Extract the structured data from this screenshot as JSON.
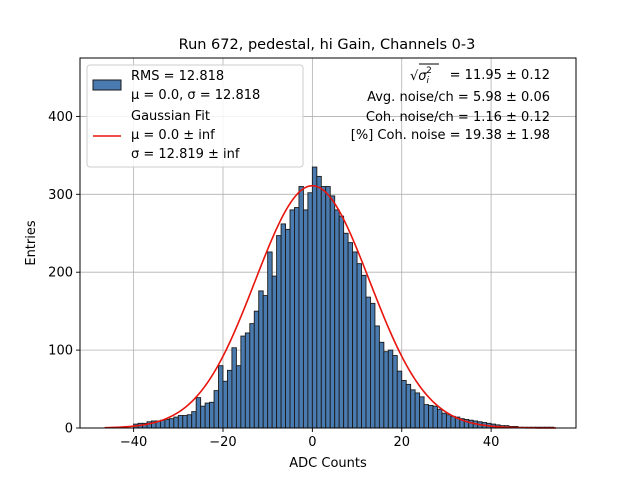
{
  "chart_data": {
    "type": "bar",
    "title": "Run 672, pedestal, hi Gain, Channels 0-3",
    "xlabel": "ADC Counts",
    "ylabel": "Entries",
    "xlim": [
      -52,
      59
    ],
    "ylim": [
      0,
      475
    ],
    "xticks": [
      -40,
      -20,
      0,
      20,
      40
    ],
    "yticks": [
      0,
      100,
      200,
      300,
      400
    ],
    "xtick_labels": [
      "−40",
      "−20",
      "0",
      "20",
      "40"
    ],
    "ytick_labels": [
      "0",
      "100",
      "200",
      "300",
      "400"
    ],
    "grid": true,
    "legend_position": "top-left",
    "histogram": {
      "name": "RMS = 12.818",
      "name_line2": "μ = 0.0, σ = 12.818",
      "color": "#4a7bb0",
      "edge_color": "#1a1a1a",
      "bin_start": -40,
      "bin_width": 1,
      "values": [
        5,
        6,
        6,
        8,
        9,
        9,
        10,
        11,
        12,
        14,
        16,
        16,
        17,
        21,
        39,
        28,
        32,
        33,
        48,
        80,
        60,
        74,
        103,
        80,
        118,
        122,
        134,
        150,
        176,
        170,
        226,
        195,
        247,
        262,
        255,
        280,
        283,
        310,
        280,
        302,
        335,
        323,
        310,
        310,
        298,
        280,
        272,
        250,
        238,
        226,
        211,
        196,
        168,
        160,
        131,
        110,
        98,
        100,
        93,
        73,
        61,
        56,
        49,
        45,
        40,
        30,
        29,
        28,
        24,
        19,
        17,
        15,
        14,
        12,
        11,
        10,
        9,
        8,
        7,
        6,
        5,
        4,
        3,
        3,
        2,
        2,
        1,
        1,
        1,
        1,
        1,
        1,
        1,
        1
      ]
    },
    "fit": {
      "name": "Gaussian Fit",
      "mu_label": " μ = 0.0 ± inf",
      "sigma_label": " σ = 12.819 ± inf",
      "color": "#e8150d",
      "mu": 0.0,
      "sigma": 12.819,
      "amplitude": 311,
      "x_range": [
        -46.5,
        54.5
      ]
    },
    "annotations": {
      "line1_value": " = 11.95 ± 0.12",
      "line2": "Avg. noise/ch = 5.98 ± 0.06",
      "line3": "Coh. noise/ch = 1.16 ± 0.12",
      "line4": "[%] Coh. noise = 19.38 ± 1.98"
    }
  }
}
